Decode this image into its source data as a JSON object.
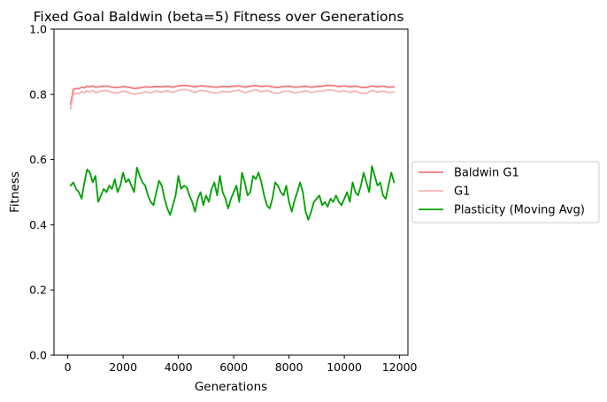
{
  "chart_data": {
    "type": "line",
    "title": "Fixed Goal Baldwin (beta=5) Fitness over Generations",
    "xlabel": "Generations",
    "ylabel": "Fitness",
    "xlim": [
      -500,
      12300
    ],
    "ylim": [
      0,
      1.0
    ],
    "xticks": [
      0,
      2000,
      4000,
      6000,
      8000,
      10000,
      12000
    ],
    "xtick_labels": [
      "0",
      "2000",
      "4000",
      "6000",
      "8000",
      "10000",
      "12000"
    ],
    "yticks": [
      0.0,
      0.2,
      0.4,
      0.6,
      0.8,
      1.0
    ],
    "ytick_labels": [
      "0.0",
      "0.2",
      "0.4",
      "0.6",
      "0.8",
      "1.0"
    ],
    "grid": false,
    "legend_placement": "outside-right",
    "series": [
      {
        "name": "Baldwin G1",
        "color": "#f07a7a",
        "x": [
          100,
          200,
          300,
          400,
          500,
          600,
          700,
          800,
          900,
          1000,
          1200,
          1400,
          1600,
          1800,
          2000,
          2200,
          2400,
          2600,
          2800,
          3000,
          3200,
          3400,
          3600,
          3800,
          4000,
          4200,
          4400,
          4600,
          4800,
          5000,
          5200,
          5400,
          5600,
          5800,
          6000,
          6200,
          6400,
          6600,
          6800,
          7000,
          7200,
          7400,
          7600,
          7800,
          8000,
          8200,
          8400,
          8600,
          8800,
          9000,
          9200,
          9400,
          9600,
          9800,
          10000,
          10200,
          10400,
          10600,
          10800,
          11000,
          11200,
          11400,
          11600,
          11800
        ],
        "values": [
          0.77,
          0.815,
          0.818,
          0.817,
          0.822,
          0.82,
          0.825,
          0.823,
          0.826,
          0.822,
          0.824,
          0.826,
          0.822,
          0.821,
          0.824,
          0.822,
          0.818,
          0.82,
          0.823,
          0.822,
          0.824,
          0.823,
          0.825,
          0.822,
          0.826,
          0.828,
          0.826,
          0.823,
          0.826,
          0.825,
          0.823,
          0.822,
          0.824,
          0.823,
          0.825,
          0.826,
          0.822,
          0.825,
          0.827,
          0.824,
          0.826,
          0.823,
          0.821,
          0.824,
          0.825,
          0.822,
          0.823,
          0.825,
          0.822,
          0.824,
          0.825,
          0.828,
          0.827,
          0.824,
          0.826,
          0.823,
          0.825,
          0.822,
          0.821,
          0.826,
          0.823,
          0.825,
          0.822,
          0.823
        ]
      },
      {
        "name": "G1",
        "color": "#f5b5b5",
        "x": [
          100,
          200,
          300,
          400,
          500,
          600,
          700,
          800,
          900,
          1000,
          1200,
          1400,
          1600,
          1800,
          2000,
          2200,
          2400,
          2600,
          2800,
          3000,
          3200,
          3400,
          3600,
          3800,
          4000,
          4200,
          4400,
          4600,
          4800,
          5000,
          5200,
          5400,
          5600,
          5800,
          6000,
          6200,
          6400,
          6600,
          6800,
          7000,
          7200,
          7400,
          7600,
          7800,
          8000,
          8200,
          8400,
          8600,
          8800,
          9000,
          9200,
          9400,
          9600,
          9800,
          10000,
          10200,
          10400,
          10600,
          10800,
          11000,
          11200,
          11400,
          11600,
          11800
        ],
        "values": [
          0.755,
          0.8,
          0.804,
          0.802,
          0.808,
          0.805,
          0.811,
          0.807,
          0.812,
          0.805,
          0.81,
          0.812,
          0.806,
          0.804,
          0.81,
          0.806,
          0.8,
          0.804,
          0.808,
          0.805,
          0.81,
          0.807,
          0.811,
          0.806,
          0.812,
          0.815,
          0.812,
          0.806,
          0.812,
          0.81,
          0.806,
          0.804,
          0.809,
          0.807,
          0.81,
          0.813,
          0.805,
          0.81,
          0.814,
          0.808,
          0.812,
          0.806,
          0.803,
          0.809,
          0.81,
          0.805,
          0.807,
          0.811,
          0.805,
          0.809,
          0.81,
          0.814,
          0.813,
          0.808,
          0.811,
          0.806,
          0.81,
          0.804,
          0.803,
          0.812,
          0.807,
          0.81,
          0.806,
          0.807
        ]
      },
      {
        "name": "Plasticity (Moving Avg)",
        "color": "#00a000",
        "x": [
          100,
          200,
          300,
          400,
          500,
          600,
          700,
          800,
          900,
          1000,
          1100,
          1200,
          1300,
          1400,
          1500,
          1600,
          1700,
          1800,
          1900,
          2000,
          2100,
          2200,
          2300,
          2400,
          2500,
          2600,
          2700,
          2800,
          2900,
          3000,
          3100,
          3200,
          3300,
          3400,
          3500,
          3600,
          3700,
          3800,
          3900,
          4000,
          4100,
          4200,
          4300,
          4400,
          4500,
          4600,
          4700,
          4800,
          4900,
          5000,
          5100,
          5200,
          5300,
          5400,
          5500,
          5600,
          5700,
          5800,
          5900,
          6000,
          6100,
          6200,
          6300,
          6400,
          6500,
          6600,
          6700,
          6800,
          6900,
          7000,
          7100,
          7200,
          7300,
          7400,
          7500,
          7600,
          7700,
          7800,
          7900,
          8000,
          8100,
          8200,
          8300,
          8400,
          8500,
          8600,
          8700,
          8800,
          8900,
          9000,
          9100,
          9200,
          9300,
          9400,
          9500,
          9600,
          9700,
          9800,
          9900,
          10000,
          10100,
          10200,
          10300,
          10400,
          10500,
          10600,
          10700,
          10800,
          10900,
          11000,
          11100,
          11200,
          11300,
          11400,
          11500,
          11600,
          11700,
          11800
        ],
        "values": [
          0.52,
          0.53,
          0.51,
          0.5,
          0.48,
          0.53,
          0.57,
          0.56,
          0.53,
          0.55,
          0.47,
          0.49,
          0.51,
          0.5,
          0.52,
          0.51,
          0.54,
          0.5,
          0.52,
          0.56,
          0.53,
          0.54,
          0.52,
          0.5,
          0.575,
          0.55,
          0.53,
          0.52,
          0.49,
          0.47,
          0.46,
          0.5,
          0.535,
          0.52,
          0.48,
          0.45,
          0.43,
          0.46,
          0.49,
          0.55,
          0.51,
          0.52,
          0.515,
          0.49,
          0.47,
          0.44,
          0.48,
          0.5,
          0.46,
          0.49,
          0.47,
          0.51,
          0.53,
          0.49,
          0.55,
          0.5,
          0.48,
          0.45,
          0.48,
          0.5,
          0.52,
          0.47,
          0.56,
          0.53,
          0.49,
          0.5,
          0.55,
          0.54,
          0.56,
          0.53,
          0.49,
          0.46,
          0.45,
          0.48,
          0.53,
          0.52,
          0.5,
          0.49,
          0.52,
          0.47,
          0.44,
          0.475,
          0.5,
          0.53,
          0.5,
          0.44,
          0.415,
          0.44,
          0.47,
          0.48,
          0.49,
          0.46,
          0.47,
          0.455,
          0.48,
          0.47,
          0.49,
          0.47,
          0.46,
          0.48,
          0.5,
          0.47,
          0.53,
          0.5,
          0.49,
          0.52,
          0.56,
          0.53,
          0.5,
          0.58,
          0.55,
          0.52,
          0.53,
          0.49,
          0.48,
          0.52,
          0.56,
          0.53
        ]
      }
    ]
  }
}
